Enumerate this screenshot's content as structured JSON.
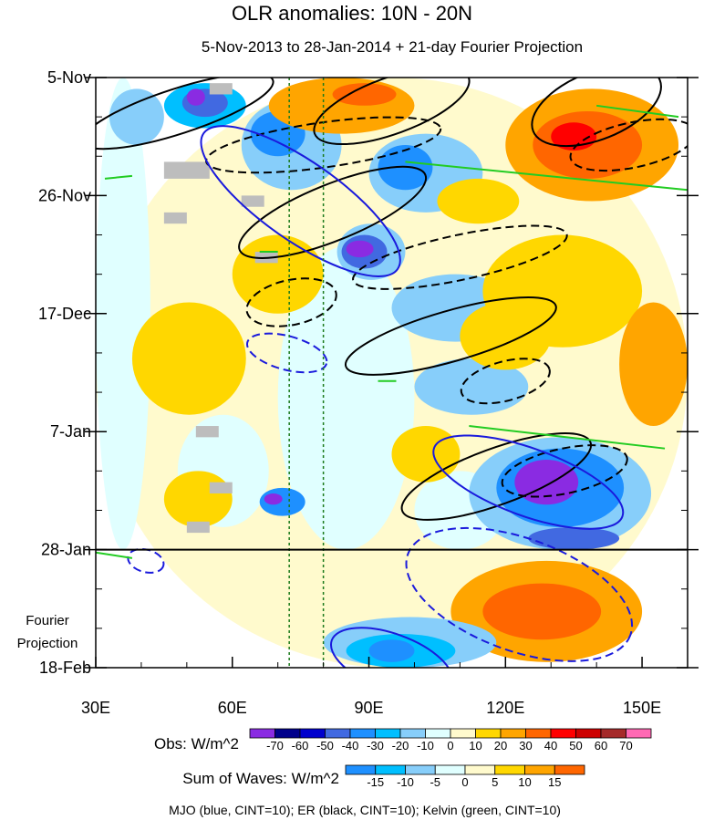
{
  "chart_data": {
    "type": "heatmap",
    "title": "OLR anomalies: 10N - 20N",
    "subtitle": "5-Nov-2013 to 28-Jan-2014 + 21-day Fourier Projection",
    "x_axis": {
      "range": [
        30,
        160
      ],
      "ticks": [
        30,
        60,
        90,
        120,
        150
      ],
      "tick_labels": [
        "30E",
        "60E",
        "90E",
        "120E",
        "150E"
      ]
    },
    "y_axis": {
      "range_days": [
        0,
        105
      ],
      "ticks_days": [
        0,
        21,
        42,
        63,
        84,
        105
      ],
      "tick_labels": [
        "5-Nov",
        "26-Nov",
        "17-Dec",
        "7-Jan",
        "28-Jan",
        "18-Feb"
      ],
      "direction": "time increases downward"
    },
    "observation_end_day": 84,
    "fourier_label": [
      "Fourier",
      "Projection"
    ],
    "reference_longitudes": [
      72.5,
      80
    ],
    "obs_colorbar": {
      "label": "Obs: W/m^2",
      "levels": [
        "-70",
        "-60",
        "-50",
        "-40",
        "-30",
        "-20",
        "-10",
        "0",
        "10",
        "20",
        "30",
        "40",
        "50",
        "60",
        "70"
      ],
      "colors": [
        "#8a2be2",
        "#00008b",
        "#0000cd",
        "#4169e1",
        "#1e90ff",
        "#00bfff",
        "#87cefa",
        "#e0ffff",
        "#fffacd",
        "#ffd700",
        "#ffa500",
        "#ff6600",
        "#ff0000",
        "#cd0000",
        "#a52a2a",
        "#ff69b4"
      ]
    },
    "waves_colorbar": {
      "label": "Sum of Waves: W/m^2",
      "levels": [
        "-15",
        "-10",
        "-5",
        "0",
        "5",
        "10",
        "15"
      ],
      "colors": [
        "#1e90ff",
        "#00bfff",
        "#87cefa",
        "#e0ffff",
        "#fffacd",
        "#ffd700",
        "#ffa500",
        "#ff6600"
      ]
    },
    "patches": [
      {
        "lon": 30,
        "day": 0,
        "w": 130,
        "h": 105,
        "c": 8
      },
      {
        "lon": 30,
        "day": 0,
        "w": 12,
        "h": 84,
        "c": 7
      },
      {
        "lon": 70,
        "day": 30,
        "w": 30,
        "h": 54,
        "c": 7
      },
      {
        "lon": 100,
        "day": 70,
        "w": 20,
        "h": 14,
        "c": 7
      },
      {
        "lon": 48,
        "day": 60,
        "w": 20,
        "h": 20,
        "c": 7
      },
      {
        "lon": 33,
        "day": 2,
        "w": 12,
        "h": 10,
        "c": 6
      },
      {
        "lon": 45,
        "day": 1,
        "w": 18,
        "h": 8,
        "c": 5
      },
      {
        "lon": 49,
        "day": 2,
        "w": 10,
        "h": 5,
        "c": 3
      },
      {
        "lon": 50,
        "day": 2,
        "w": 4,
        "h": 3,
        "c": 0
      },
      {
        "lon": 62,
        "day": 4,
        "w": 22,
        "h": 16,
        "c": 6
      },
      {
        "lon": 64,
        "day": 6,
        "w": 12,
        "h": 8,
        "c": 4
      },
      {
        "lon": 83,
        "day": 26,
        "w": 15,
        "h": 10,
        "c": 6
      },
      {
        "lon": 84,
        "day": 28,
        "w": 10,
        "h": 6,
        "c": 3
      },
      {
        "lon": 85,
        "day": 29,
        "w": 6,
        "h": 3,
        "c": 0
      },
      {
        "lon": 90,
        "day": 10,
        "w": 25,
        "h": 14,
        "c": 6
      },
      {
        "lon": 92,
        "day": 12,
        "w": 12,
        "h": 8,
        "c": 4
      },
      {
        "lon": 95,
        "day": 35,
        "w": 28,
        "h": 12,
        "c": 6
      },
      {
        "lon": 100,
        "day": 50,
        "w": 25,
        "h": 10,
        "c": 6
      },
      {
        "lon": 112,
        "day": 64,
        "w": 40,
        "h": 20,
        "c": 6
      },
      {
        "lon": 118,
        "day": 66,
        "w": 28,
        "h": 14,
        "c": 4
      },
      {
        "lon": 122,
        "day": 68,
        "w": 14,
        "h": 8,
        "c": 0
      },
      {
        "lon": 66,
        "day": 73,
        "w": 10,
        "h": 5,
        "c": 4
      },
      {
        "lon": 67,
        "day": 74,
        "w": 4,
        "h": 2,
        "c": 0
      },
      {
        "lon": 125,
        "day": 80,
        "w": 20,
        "h": 4,
        "c": 3
      },
      {
        "lon": 68,
        "day": 0,
        "w": 32,
        "h": 10,
        "c": 10
      },
      {
        "lon": 82,
        "day": 1,
        "w": 14,
        "h": 4,
        "c": 11
      },
      {
        "lon": 120,
        "day": 2,
        "w": 38,
        "h": 20,
        "c": 10
      },
      {
        "lon": 126,
        "day": 6,
        "w": 24,
        "h": 12,
        "c": 11
      },
      {
        "lon": 130,
        "day": 8,
        "w": 10,
        "h": 5,
        "c": 12
      },
      {
        "lon": 60,
        "day": 28,
        "w": 20,
        "h": 14,
        "c": 9
      },
      {
        "lon": 105,
        "day": 18,
        "w": 18,
        "h": 8,
        "c": 9
      },
      {
        "lon": 115,
        "day": 28,
        "w": 35,
        "h": 20,
        "c": 9
      },
      {
        "lon": 110,
        "day": 40,
        "w": 20,
        "h": 12,
        "c": 9
      },
      {
        "lon": 38,
        "day": 40,
        "w": 25,
        "h": 20,
        "c": 9
      },
      {
        "lon": 145,
        "day": 40,
        "w": 15,
        "h": 22,
        "c": 10
      },
      {
        "lon": 95,
        "day": 62,
        "w": 15,
        "h": 10,
        "c": 9
      },
      {
        "lon": 45,
        "day": 70,
        "w": 15,
        "h": 10,
        "c": 9
      },
      {
        "lon": 108,
        "day": 86,
        "w": 42,
        "h": 18,
        "c": 10
      },
      {
        "lon": 115,
        "day": 90,
        "w": 26,
        "h": 10,
        "c": 11
      },
      {
        "lon": 80,
        "day": 96,
        "w": 38,
        "h": 9,
        "c": 6
      },
      {
        "lon": 85,
        "day": 99,
        "w": 24,
        "h": 6,
        "c": 5
      },
      {
        "lon": 90,
        "day": 100,
        "w": 10,
        "h": 4,
        "c": 4
      }
    ],
    "missing": [
      {
        "lon": 55,
        "day": 1,
        "w": 5,
        "h": 2
      },
      {
        "lon": 45,
        "day": 15,
        "w": 10,
        "h": 3
      },
      {
        "lon": 45,
        "day": 24,
        "w": 5,
        "h": 2
      },
      {
        "lon": 62,
        "day": 21,
        "w": 5,
        "h": 2
      },
      {
        "lon": 65,
        "day": 31,
        "w": 5,
        "h": 2
      },
      {
        "lon": 52,
        "day": 62,
        "w": 5,
        "h": 2
      },
      {
        "lon": 55,
        "day": 72,
        "w": 5,
        "h": 2
      },
      {
        "lon": 50,
        "day": 79,
        "w": 5,
        "h": 2
      }
    ],
    "contours": [
      {
        "wave": "ER",
        "sign": "pos",
        "lon": 48,
        "day": 6,
        "rx": 22,
        "ry": 4,
        "rot": -18
      },
      {
        "wave": "ER",
        "sign": "pos",
        "lon": 82,
        "day": 24,
        "rx": 22,
        "ry": 5,
        "rot": -22
      },
      {
        "wave": "ER",
        "sign": "pos",
        "lon": 108,
        "day": 46,
        "rx": 24,
        "ry": 4.5,
        "rot": -16
      },
      {
        "wave": "ER",
        "sign": "pos",
        "lon": 118,
        "day": 71,
        "rx": 22,
        "ry": 5,
        "rot": -20
      },
      {
        "wave": "ER",
        "sign": "pos",
        "lon": 140,
        "day": 5,
        "rx": 15,
        "ry": 6,
        "rot": -22
      },
      {
        "wave": "ER",
        "sign": "pos",
        "lon": 95,
        "day": 5,
        "rx": 18,
        "ry": 5,
        "rot": -20
      },
      {
        "wave": "ER",
        "sign": "neg",
        "lon": 80,
        "day": 12,
        "rx": 26,
        "ry": 4,
        "rot": -8
      },
      {
        "wave": "ER",
        "sign": "neg",
        "lon": 73,
        "day": 40,
        "rx": 10,
        "ry": 4,
        "rot": -12
      },
      {
        "wave": "ER",
        "sign": "neg",
        "lon": 110,
        "day": 32,
        "rx": 24,
        "ry": 4,
        "rot": -12
      },
      {
        "wave": "ER",
        "sign": "neg",
        "lon": 120,
        "day": 54,
        "rx": 10,
        "ry": 3.5,
        "rot": -15
      },
      {
        "wave": "ER",
        "sign": "neg",
        "lon": 133,
        "day": 70,
        "rx": 14,
        "ry": 4,
        "rot": -12
      },
      {
        "wave": "ER",
        "sign": "neg",
        "lon": 148,
        "day": 12,
        "rx": 14,
        "ry": 4,
        "rot": -12
      },
      {
        "wave": "MJO",
        "sign": "pos",
        "lon": 75,
        "day": 22,
        "rx": 26,
        "ry": 7,
        "rot": 35
      },
      {
        "wave": "MJO",
        "sign": "pos",
        "lon": 125,
        "day": 72,
        "rx": 22,
        "ry": 6,
        "rot": 20
      },
      {
        "wave": "MJO",
        "sign": "pos",
        "lon": 95,
        "day": 104,
        "rx": 14,
        "ry": 5,
        "rot": 20
      },
      {
        "wave": "MJO",
        "sign": "neg",
        "lon": 72,
        "day": 49,
        "rx": 9,
        "ry": 3,
        "rot": 15
      },
      {
        "wave": "MJO",
        "sign": "neg",
        "lon": 123,
        "day": 92,
        "rx": 26,
        "ry": 10,
        "rot": 20
      },
      {
        "wave": "MJO",
        "sign": "neg",
        "lon": 41,
        "day": 86,
        "rx": 4,
        "ry": 2,
        "rot": 15
      }
    ],
    "kelvin_lines": [
      {
        "lon1": 32,
        "day1": 18,
        "lon2": 38,
        "day2": 17.5
      },
      {
        "lon1": 98,
        "day1": 15,
        "lon2": 160,
        "day2": 20
      },
      {
        "lon1": 140,
        "day1": 5,
        "lon2": 158,
        "day2": 7
      },
      {
        "lon1": 112,
        "day1": 62,
        "lon2": 155,
        "day2": 66
      },
      {
        "lon1": 30,
        "day1": 84.5,
        "lon2": 38,
        "day2": 85.5
      },
      {
        "lon1": 66,
        "day1": 31,
        "lon2": 70,
        "day2": 31
      },
      {
        "lon1": 92,
        "day1": 54,
        "lon2": 96,
        "day2": 54
      }
    ],
    "footer": "MJO (blue, CINT=10); ER (black, CINT=10); Kelvin (green, CINT=10)"
  }
}
